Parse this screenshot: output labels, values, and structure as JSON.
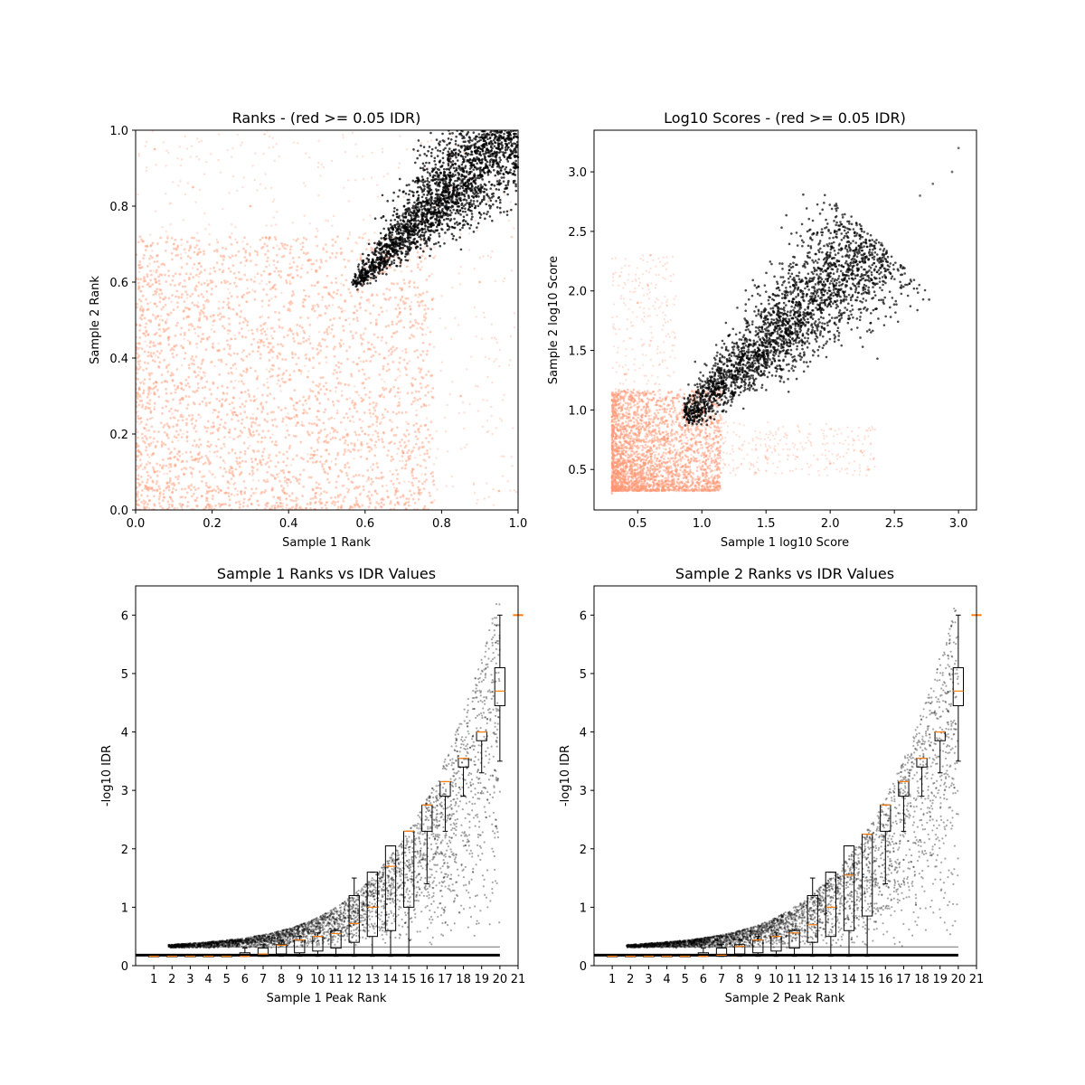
{
  "figure": {
    "background": "#ffffff"
  },
  "colors": {
    "pass": "#000000",
    "fail": "#ff9671",
    "median": "#ff7f0e",
    "box": "#000000"
  },
  "chart_data": [
    {
      "id": "ranks",
      "type": "scatter",
      "title": "Ranks - (red >= 0.05 IDR)",
      "xlabel": "Sample 1 Rank",
      "ylabel": "Sample 2 Rank",
      "xlim": [
        0,
        1
      ],
      "ylim": [
        0,
        1
      ],
      "xticks": [
        "0.0",
        "0.2",
        "0.4",
        "0.6",
        "0.8",
        "1.0"
      ],
      "yticks": [
        "0.0",
        "0.2",
        "0.4",
        "0.6",
        "0.8",
        "1.0"
      ],
      "series": [
        {
          "color": "#ff9671",
          "points": [
            [
              0.05,
              0.1
            ],
            [
              0.12,
              0.32
            ],
            [
              0.2,
              0.05
            ],
            [
              0.25,
              0.45
            ],
            [
              0.3,
              0.2
            ],
            [
              0.35,
              0.6
            ],
            [
              0.4,
              0.1
            ],
            [
              0.45,
              0.35
            ],
            [
              0.5,
              0.02
            ],
            [
              0.55,
              0.5
            ],
            [
              0.6,
              0.2
            ],
            [
              0.65,
              0.4
            ],
            [
              0.1,
              0.7
            ],
            [
              0.15,
              0.85
            ],
            [
              0.3,
              0.8
            ],
            [
              0.7,
              0.15
            ],
            [
              0.75,
              0.55
            ],
            [
              0.85,
              0.3
            ],
            [
              0.9,
              0.6
            ],
            [
              0.05,
              0.95
            ],
            [
              0.95,
              0.05
            ]
          ]
        },
        {
          "color": "#000000",
          "points": [
            [
              0.58,
              0.58
            ],
            [
              0.6,
              0.62
            ],
            [
              0.65,
              0.66
            ],
            [
              0.7,
              0.7
            ],
            [
              0.75,
              0.76
            ],
            [
              0.8,
              0.82
            ],
            [
              0.85,
              0.86
            ],
            [
              0.9,
              0.9
            ],
            [
              0.95,
              0.95
            ],
            [
              0.99,
              0.99
            ],
            [
              0.7,
              0.78
            ],
            [
              0.8,
              0.74
            ],
            [
              0.9,
              0.84
            ],
            [
              0.88,
              0.96
            ]
          ]
        }
      ]
    },
    {
      "id": "scores",
      "type": "scatter",
      "title": "Log10 Scores - (red >= 0.05 IDR)",
      "xlabel": "Sample 1 log10 Score",
      "ylabel": "Sample 2 log10 Score",
      "xlim": [
        0.16,
        3.14
      ],
      "ylim": [
        0.16,
        3.35
      ],
      "xticks": [
        "0.5",
        "1.0",
        "1.5",
        "2.0",
        "2.5",
        "3.0"
      ],
      "yticks": [
        "0.5",
        "1.0",
        "1.5",
        "2.0",
        "2.5",
        "3.0"
      ],
      "series": [
        {
          "color": "#ff9671",
          "points": [
            [
              0.3,
              0.3
            ],
            [
              0.5,
              0.5
            ],
            [
              0.7,
              0.7
            ],
            [
              0.85,
              0.85
            ],
            [
              0.3,
              0.9
            ],
            [
              0.4,
              1.3
            ],
            [
              0.5,
              1.9
            ],
            [
              0.6,
              2.3
            ],
            [
              1.0,
              0.5
            ],
            [
              1.5,
              0.6
            ],
            [
              2.0,
              0.55
            ],
            [
              2.3,
              0.5
            ]
          ]
        },
        {
          "color": "#000000",
          "points": [
            [
              0.87,
              0.87
            ],
            [
              1.0,
              1.0
            ],
            [
              1.25,
              1.25
            ],
            [
              1.5,
              1.5
            ],
            [
              1.75,
              1.75
            ],
            [
              2.0,
              2.0
            ],
            [
              2.25,
              2.25
            ],
            [
              2.4,
              2.4
            ],
            [
              2.7,
              2.8
            ],
            [
              2.8,
              2.9
            ],
            [
              2.95,
              3.0
            ],
            [
              3.0,
              3.2
            ]
          ]
        }
      ]
    },
    {
      "id": "s1idr",
      "type": "box",
      "title": "Sample 1 Ranks vs IDR Values",
      "xlabel": "Sample 1 Peak Rank",
      "ylabel": "-log10 IDR",
      "xlim": [
        0,
        21
      ],
      "ylim": [
        0,
        6.5
      ],
      "xticks": [
        "1",
        "2",
        "3",
        "4",
        "5",
        "6",
        "7",
        "8",
        "9",
        "10",
        "11",
        "12",
        "13",
        "14",
        "15",
        "16",
        "17",
        "18",
        "19",
        "20",
        "21"
      ],
      "yticks": [
        "0",
        "1",
        "2",
        "3",
        "4",
        "5",
        "6"
      ],
      "medians": [
        0.16,
        0.16,
        0.16,
        0.16,
        0.16,
        0.16,
        0.2,
        0.35,
        0.44,
        0.5,
        0.55,
        0.72,
        1.0,
        1.7,
        2.3,
        2.75,
        3.15,
        3.55,
        4.0,
        4.7
      ],
      "q1": [
        0.16,
        0.16,
        0.16,
        0.16,
        0.16,
        0.16,
        0.16,
        0.2,
        0.22,
        0.25,
        0.3,
        0.4,
        0.5,
        0.6,
        1.0,
        2.3,
        2.9,
        3.4,
        3.85,
        4.45
      ],
      "q3": [
        0.16,
        0.16,
        0.16,
        0.16,
        0.16,
        0.22,
        0.3,
        0.36,
        0.44,
        0.5,
        0.6,
        1.2,
        1.6,
        2.05,
        2.3,
        2.75,
        3.15,
        3.55,
        4.0,
        5.1
      ],
      "whisker_low": [
        0.16,
        0.16,
        0.16,
        0.16,
        0.16,
        0.16,
        0.16,
        0.16,
        0.16,
        0.16,
        0.16,
        0.16,
        0.16,
        0.16,
        0.16,
        1.4,
        2.3,
        2.9,
        3.3,
        3.5
      ],
      "whisker_high": [
        0.16,
        0.16,
        0.16,
        0.16,
        0.16,
        0.3,
        0.36,
        0.44,
        0.5,
        0.56,
        0.62,
        1.5,
        1.6,
        2.05,
        2.3,
        2.75,
        3.15,
        3.55,
        4.0,
        6.0
      ],
      "extra_median_at_21": 6.0
    },
    {
      "id": "s2idr",
      "type": "box",
      "title": "Sample 2 Ranks vs IDR Values",
      "xlabel": "Sample 2 Peak Rank",
      "ylabel": "-log10 IDR",
      "xlim": [
        0,
        21
      ],
      "ylim": [
        0,
        6.5
      ],
      "xticks": [
        "1",
        "2",
        "3",
        "4",
        "5",
        "6",
        "7",
        "8",
        "9",
        "10",
        "11",
        "12",
        "13",
        "14",
        "15",
        "16",
        "17",
        "18",
        "19",
        "20",
        "21"
      ],
      "yticks": [
        "0",
        "1",
        "2",
        "3",
        "4",
        "5",
        "6"
      ],
      "medians": [
        0.16,
        0.16,
        0.16,
        0.16,
        0.16,
        0.16,
        0.18,
        0.33,
        0.44,
        0.5,
        0.56,
        0.7,
        1.0,
        1.55,
        2.25,
        2.75,
        3.15,
        3.55,
        4.0,
        4.7
      ],
      "q1": [
        0.16,
        0.16,
        0.16,
        0.16,
        0.16,
        0.16,
        0.16,
        0.2,
        0.22,
        0.25,
        0.3,
        0.4,
        0.5,
        0.6,
        0.85,
        2.3,
        2.9,
        3.4,
        3.85,
        4.45
      ],
      "q3": [
        0.16,
        0.16,
        0.16,
        0.16,
        0.16,
        0.22,
        0.3,
        0.36,
        0.44,
        0.5,
        0.6,
        1.2,
        1.6,
        2.05,
        2.25,
        2.75,
        3.15,
        3.55,
        4.0,
        5.1
      ],
      "whisker_low": [
        0.16,
        0.16,
        0.16,
        0.16,
        0.16,
        0.16,
        0.16,
        0.16,
        0.16,
        0.16,
        0.16,
        0.16,
        0.16,
        0.16,
        0.16,
        1.4,
        2.3,
        2.9,
        3.3,
        3.5
      ],
      "whisker_high": [
        0.16,
        0.16,
        0.16,
        0.16,
        0.16,
        0.3,
        0.36,
        0.44,
        0.5,
        0.56,
        0.62,
        1.5,
        1.6,
        2.05,
        2.25,
        2.75,
        3.15,
        3.55,
        4.0,
        6.0
      ],
      "extra_median_at_21": 6.0
    }
  ]
}
